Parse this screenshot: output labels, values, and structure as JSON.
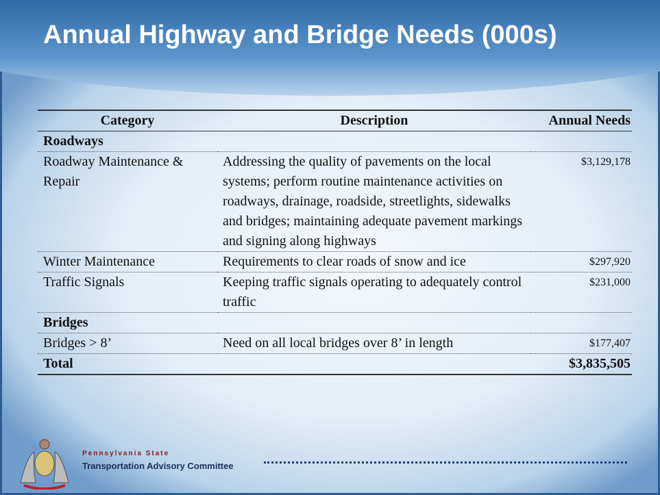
{
  "header": {
    "title": "Annual Highway and Bridge Needs (000s)"
  },
  "table": {
    "columns": [
      "Category",
      "Description",
      "Annual Needs"
    ],
    "sections": [
      {
        "name": "Roadways",
        "rows": [
          [
            "Roadway Maintenance & Repair",
            "Addressing the quality of pavements on the local systems; perform routine maintenance activities on roadways, drainage, roadside, streetlights, sidewalks and bridges; maintaining adequate pavement markings and signing along highways",
            "$3,129,178"
          ],
          [
            "Winter Maintenance",
            "Requirements to clear roads of snow and ice",
            "$297,920"
          ],
          [
            "Traffic Signals",
            "Keeping traffic signals operating to adequately control traffic",
            "$231,000"
          ]
        ]
      },
      {
        "name": "Bridges",
        "rows": [
          [
            "Bridges > 8’",
            "Need on all local bridges over 8’ in length",
            "$177,407"
          ]
        ]
      }
    ],
    "total": {
      "label": "Total",
      "value": "$3,835,505"
    }
  },
  "footer": {
    "line1": "Pennsylvania State",
    "line2": "Transportation Advisory Committee"
  }
}
